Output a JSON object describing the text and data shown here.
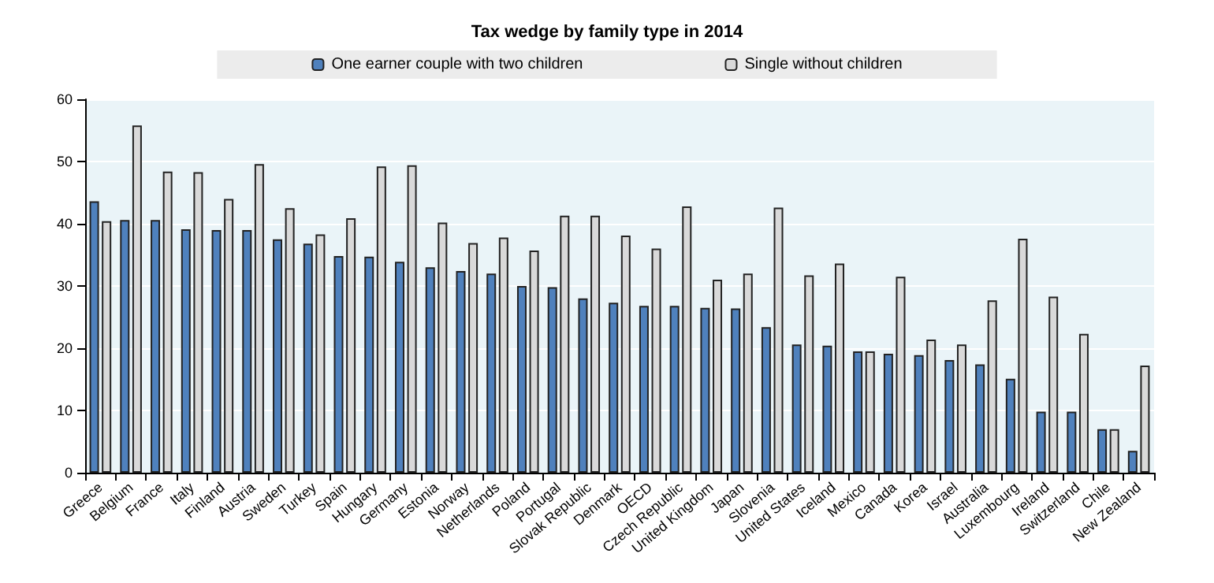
{
  "chart_data": {
    "type": "bar",
    "title": "Tax wedge by family type in 2014",
    "categories": [
      "Greece",
      "Belgium",
      "France",
      "Italy",
      "Finland",
      "Austria",
      "Sweden",
      "Turkey",
      "Spain",
      "Hungary",
      "Germany",
      "Estonia",
      "Norway",
      "Netherlands",
      "Poland",
      "Portugal",
      "Slovak Republic",
      "Denmark",
      "OECD",
      "Czech Republic",
      "United Kingdom",
      "Japan",
      "Slovenia",
      "United States",
      "Iceland",
      "Mexico",
      "Canada",
      "Korea",
      "Israel",
      "Australia",
      "Luxembourg",
      "Ireland",
      "Switzerland",
      "Chile",
      "New Zealand"
    ],
    "series": [
      {
        "name": "One earner couple with two children",
        "color": "#4f81bd",
        "values": [
          43.6,
          40.6,
          40.6,
          39.1,
          39.0,
          39.0,
          37.5,
          36.8,
          34.8,
          34.7,
          33.9,
          33.0,
          32.4,
          32.0,
          30.0,
          29.8,
          28.0,
          27.3,
          26.8,
          26.8,
          26.5,
          26.4,
          23.4,
          20.6,
          20.4,
          19.5,
          19.1,
          18.9,
          18.1,
          17.4,
          15.1,
          9.8,
          9.8,
          7.0,
          3.5
        ]
      },
      {
        "name": "Single without children",
        "color": "#d9d9d9",
        "values": [
          40.4,
          55.8,
          48.4,
          48.3,
          44.0,
          49.6,
          42.5,
          38.3,
          40.9,
          49.2,
          49.4,
          40.2,
          36.9,
          37.8,
          35.7,
          41.3,
          41.3,
          38.1,
          36.0,
          42.8,
          31.0,
          32.0,
          42.6,
          31.7,
          33.6,
          19.5,
          31.5,
          21.4,
          20.6,
          27.7,
          37.6,
          28.3,
          22.3,
          7.0,
          17.2
        ]
      }
    ],
    "ylim": [
      0,
      60
    ],
    "yticks": [
      0,
      10,
      20,
      30,
      40,
      50,
      60
    ],
    "grid": "y",
    "legend": "top"
  }
}
